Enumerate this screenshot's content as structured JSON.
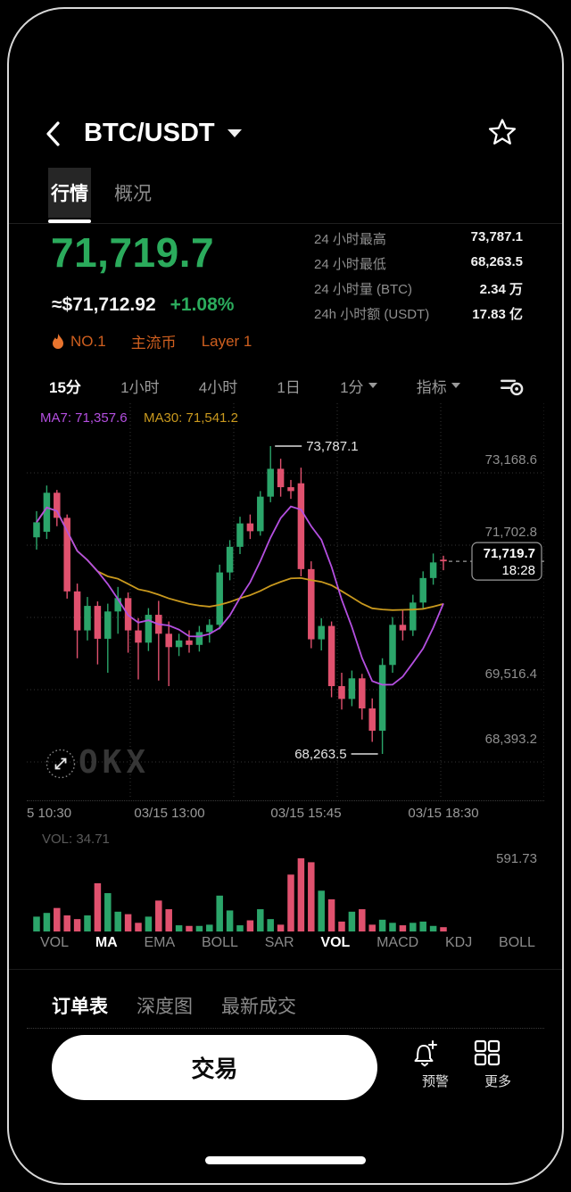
{
  "header": {
    "title": "BTC/USDT",
    "back_icon": "chevron-left",
    "favorite_icon": "star-outline"
  },
  "tabs": [
    {
      "label": "行情",
      "active": true
    },
    {
      "label": "概况",
      "active": false
    }
  ],
  "price": {
    "value": "71,719.7",
    "usd": "≈$71,712.92",
    "change": "+1.08%"
  },
  "badges": {
    "rank": "NO.1",
    "tag1": "主流币",
    "tag2": "Layer 1",
    "flame_color": "#e8742e",
    "text_color": "#cf5f1f"
  },
  "stats": [
    {
      "label": "24 小时最高",
      "value": "73,787.1"
    },
    {
      "label": "24 小时最低",
      "value": "68,263.5"
    },
    {
      "label": "24 小时量 (BTC)",
      "value": "2.34 万"
    },
    {
      "label": "24h 小时额 (USDT)",
      "value": "17.83 亿"
    }
  ],
  "timeframes": [
    {
      "label": "15分",
      "active": true
    },
    {
      "label": "1小时",
      "active": false
    },
    {
      "label": "4小时",
      "active": false
    },
    {
      "label": "1日",
      "active": false
    },
    {
      "label": "1分",
      "active": false,
      "caret": true
    },
    {
      "label": "指标",
      "active": false,
      "caret": true
    }
  ],
  "chart_data": {
    "type": "candlestick",
    "ma7_label": "MA7: 71,357.6",
    "ma30_label": "MA30: 71,541.2",
    "ma7_color": "#b44fe0",
    "ma30_color": "#c9991e",
    "up_color": "#2ba56a",
    "down_color": "#e0516e",
    "y_axis_labels": [
      "73,168.6",
      "71,702.8",
      "69,516.4",
      "68,393.2"
    ],
    "x_axis_labels": [
      "5 10:30",
      "03/15 13:00",
      "03/15 15:45",
      "03/15 18:30"
    ],
    "high_annotation": "73,787.1",
    "low_annotation": "68,263.5",
    "last_price": "71,719.7",
    "last_time": "18:28",
    "vol_label": "VOL: 34.71",
    "vol_max_label": "591.73",
    "candles": [
      [
        72150,
        72620,
        71930,
        72420
      ],
      [
        72250,
        73080,
        72120,
        72950
      ],
      [
        72950,
        73000,
        72350,
        72500
      ],
      [
        72500,
        72560,
        71050,
        71180
      ],
      [
        71180,
        71320,
        69980,
        70480
      ],
      [
        70480,
        71080,
        70300,
        70920
      ],
      [
        70920,
        71000,
        69870,
        70330
      ],
      [
        70330,
        70960,
        69720,
        70820
      ],
      [
        70820,
        71260,
        70420,
        71060
      ],
      [
        71060,
        71160,
        70080,
        70480
      ],
      [
        70480,
        70700,
        69600,
        70260
      ],
      [
        70260,
        70880,
        70110,
        70760
      ],
      [
        70760,
        71010,
        69580,
        70420
      ],
      [
        70420,
        70640,
        69480,
        70180
      ],
      [
        70180,
        70420,
        70020,
        70300
      ],
      [
        70300,
        70480,
        70080,
        70220
      ],
      [
        70220,
        70560,
        70100,
        70450
      ],
      [
        70450,
        70680,
        70260,
        70580
      ],
      [
        70580,
        71660,
        70500,
        71520
      ],
      [
        71520,
        72100,
        71380,
        71980
      ],
      [
        71980,
        72520,
        71850,
        72400
      ],
      [
        72400,
        72560,
        72120,
        72260
      ],
      [
        72260,
        72980,
        72180,
        72880
      ],
      [
        72880,
        73787.1,
        72780,
        73380
      ],
      [
        73380,
        73560,
        72880,
        73050
      ],
      [
        73050,
        73180,
        72840,
        72980
      ],
      [
        73120,
        73400,
        71450,
        71580
      ],
      [
        71580,
        71720,
        70160,
        70320
      ],
      [
        70320,
        70700,
        70120,
        70560
      ],
      [
        70560,
        70640,
        69280,
        69480
      ],
      [
        69480,
        69720,
        69060,
        69250
      ],
      [
        69250,
        69760,
        69120,
        69620
      ],
      [
        69620,
        69700,
        68880,
        69080
      ],
      [
        69080,
        69260,
        68480,
        68680
      ],
      [
        68680,
        69980,
        68263.5,
        69860
      ],
      [
        69860,
        70720,
        69720,
        70580
      ],
      [
        70580,
        70840,
        70300,
        70480
      ],
      [
        70480,
        71120,
        70380,
        70980
      ],
      [
        70980,
        71540,
        70880,
        71420
      ],
      [
        71420,
        71860,
        71300,
        71700
      ],
      [
        71750,
        71820,
        71560,
        71719.7
      ]
    ],
    "volumes": [
      120,
      150,
      190,
      130,
      100,
      130,
      390,
      310,
      160,
      140,
      70,
      120,
      250,
      180,
      50,
      45,
      45,
      55,
      290,
      170,
      50,
      90,
      180,
      100,
      55,
      460,
      591.73,
      560,
      330,
      260,
      80,
      160,
      180,
      55,
      95,
      70,
      50,
      70,
      80,
      45,
      34.71
    ]
  },
  "indicator_tabs": [
    {
      "label": "VOL",
      "active": false
    },
    {
      "label": "MA",
      "active": true
    },
    {
      "label": "EMA",
      "active": false
    },
    {
      "label": "BOLL",
      "active": false
    },
    {
      "label": "SAR",
      "active": false
    },
    {
      "label": "VOL",
      "active": true
    },
    {
      "label": "MACD",
      "active": false
    },
    {
      "label": "KDJ",
      "active": false
    },
    {
      "label": "BOLL",
      "active": false
    }
  ],
  "order_tabs": [
    {
      "label": "订单表",
      "active": true
    },
    {
      "label": "深度图",
      "active": false
    },
    {
      "label": "最新成交",
      "active": false
    }
  ],
  "bottom_bar": {
    "trade": "交易",
    "alert": "预警",
    "more": "更多"
  },
  "watermark": "OKX"
}
